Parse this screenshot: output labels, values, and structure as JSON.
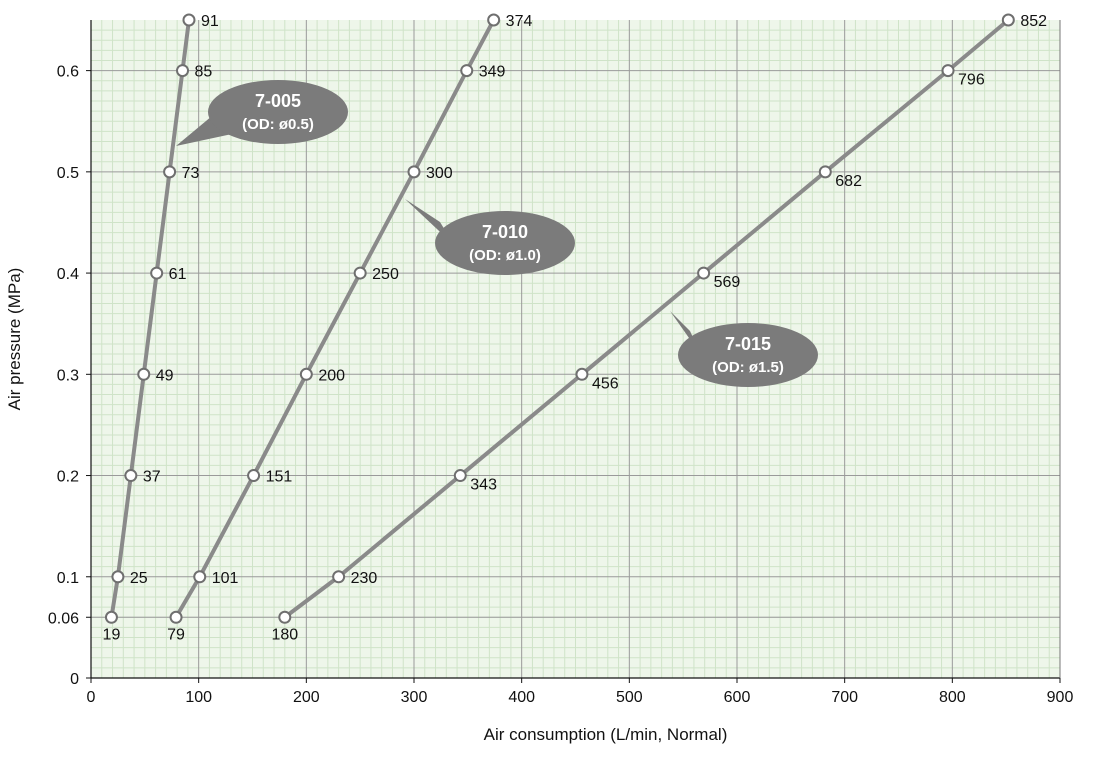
{
  "chart_data": {
    "type": "line",
    "xlabel": "Air consumption (L/min, Normal)",
    "ylabel": "Air pressure (MPa)",
    "xlim": [
      0,
      900
    ],
    "ylim": [
      0,
      0.65
    ],
    "x_ticks": [
      "0",
      "100",
      "200",
      "300",
      "400",
      "500",
      "600",
      "700",
      "800",
      "900"
    ],
    "y_ticks": [
      {
        "value": 0,
        "label": "0"
      },
      {
        "value": 0.06,
        "label": "0.06"
      },
      {
        "value": 0.1,
        "label": "0.1"
      },
      {
        "value": 0.2,
        "label": "0.2"
      },
      {
        "value": 0.3,
        "label": "0.3"
      },
      {
        "value": 0.4,
        "label": "0.4"
      },
      {
        "value": 0.5,
        "label": "0.5"
      },
      {
        "value": 0.6,
        "label": "0.6"
      }
    ],
    "grid": true,
    "colors": {
      "plot_background": "#eef6ea",
      "minor_grid": "#cfe3c8",
      "major_grid": "#9a9a9a",
      "series_line": "#8a8a8a",
      "bubble_fill": "#7b7b7b",
      "marker_fill": "#ffffff"
    },
    "series": [
      {
        "name": "7-005",
        "subtitle": "(OD: ø0.5)",
        "points": [
          {
            "y": 0.06,
            "x": 19,
            "label": "19"
          },
          {
            "y": 0.1,
            "x": 25,
            "label": "25"
          },
          {
            "y": 0.2,
            "x": 37,
            "label": "37"
          },
          {
            "y": 0.3,
            "x": 49,
            "label": "49"
          },
          {
            "y": 0.4,
            "x": 61,
            "label": "61"
          },
          {
            "y": 0.5,
            "x": 73,
            "label": "73"
          },
          {
            "y": 0.6,
            "x": 85,
            "label": "85"
          },
          {
            "y": 0.65,
            "x": 91,
            "label": "91"
          }
        ]
      },
      {
        "name": "7-010",
        "subtitle": "(OD: ø1.0)",
        "points": [
          {
            "y": 0.06,
            "x": 79,
            "label": "79"
          },
          {
            "y": 0.1,
            "x": 101,
            "label": "101"
          },
          {
            "y": 0.2,
            "x": 151,
            "label": "151"
          },
          {
            "y": 0.3,
            "x": 200,
            "label": "200"
          },
          {
            "y": 0.4,
            "x": 250,
            "label": "250"
          },
          {
            "y": 0.5,
            "x": 300,
            "label": "300"
          },
          {
            "y": 0.6,
            "x": 349,
            "label": "349"
          },
          {
            "y": 0.65,
            "x": 374,
            "label": "374"
          }
        ]
      },
      {
        "name": "7-015",
        "subtitle": "(OD: ø1.5)",
        "points": [
          {
            "y": 0.06,
            "x": 180,
            "label": "180"
          },
          {
            "y": 0.1,
            "x": 230,
            "label": "230"
          },
          {
            "y": 0.2,
            "x": 343,
            "label": "343"
          },
          {
            "y": 0.3,
            "x": 456,
            "label": "456"
          },
          {
            "y": 0.4,
            "x": 569,
            "label": "569"
          },
          {
            "y": 0.5,
            "x": 682,
            "label": "682"
          },
          {
            "y": 0.6,
            "x": 796,
            "label": "796"
          },
          {
            "y": 0.65,
            "x": 852,
            "label": "852"
          }
        ]
      }
    ]
  }
}
